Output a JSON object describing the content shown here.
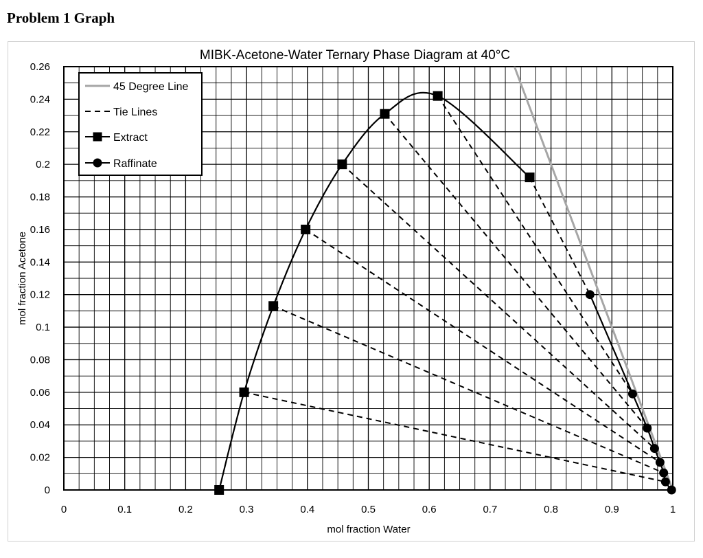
{
  "page": {
    "heading": "Problem 1 Graph"
  },
  "chart_data": {
    "type": "scatter",
    "title": "MIBK-Acetone-Water Ternary Phase Diagram at 40°C",
    "xlabel": "mol fraction Water",
    "ylabel": "mol fraction Acetone",
    "xlim": [
      0,
      1
    ],
    "ylim": [
      0,
      0.26
    ],
    "grid": true,
    "x_ticks": [
      "0",
      "0.1",
      "0.2",
      "0.3",
      "0.4",
      "0.5",
      "0.6",
      "0.7",
      "0.8",
      "0.9",
      "1"
    ],
    "y_ticks": [
      "0",
      "0.02",
      "0.04",
      "0.06",
      "0.08",
      "0.1",
      "0.12",
      "0.14",
      "0.16",
      "0.18",
      "0.2",
      "0.22",
      "0.24",
      "0.26"
    ],
    "legend_position": "top-left",
    "series": [
      {
        "name": "45 Degree Line",
        "style": "line",
        "color": "#a6a6a6",
        "x": [
          0.74,
          1.0
        ],
        "y": [
          0.26,
          0.0
        ]
      },
      {
        "name": "Tie Lines",
        "style": "dashed",
        "color": "#000000",
        "segments": [
          [
            [
              0.296,
              0.06
            ],
            [
              0.988,
              0.005
            ]
          ],
          [
            [
              0.344,
              0.113
            ],
            [
              0.985,
              0.0105
            ]
          ],
          [
            [
              0.397,
              0.16
            ],
            [
              0.979,
              0.017
            ]
          ],
          [
            [
              0.457,
              0.2
            ],
            [
              0.97,
              0.0255
            ]
          ],
          [
            [
              0.527,
              0.231
            ],
            [
              0.958,
              0.038
            ]
          ],
          [
            [
              0.614,
              0.242
            ],
            [
              0.934,
              0.059
            ]
          ],
          [
            [
              0.765,
              0.192
            ],
            [
              0.864,
              0.12
            ]
          ]
        ]
      },
      {
        "name": "Extract",
        "style": "line-square",
        "color": "#000000",
        "x": [
          0.255,
          0.296,
          0.344,
          0.397,
          0.457,
          0.527,
          0.614,
          0.765
        ],
        "y": [
          0.0,
          0.06,
          0.113,
          0.16,
          0.2,
          0.231,
          0.242,
          0.192
        ]
      },
      {
        "name": "Raffinate",
        "style": "line-circle",
        "color": "#000000",
        "x": [
          0.864,
          0.934,
          0.958,
          0.97,
          0.979,
          0.985,
          0.988,
          0.998
        ],
        "y": [
          0.12,
          0.059,
          0.038,
          0.0255,
          0.017,
          0.0105,
          0.005,
          0.0
        ]
      }
    ]
  }
}
